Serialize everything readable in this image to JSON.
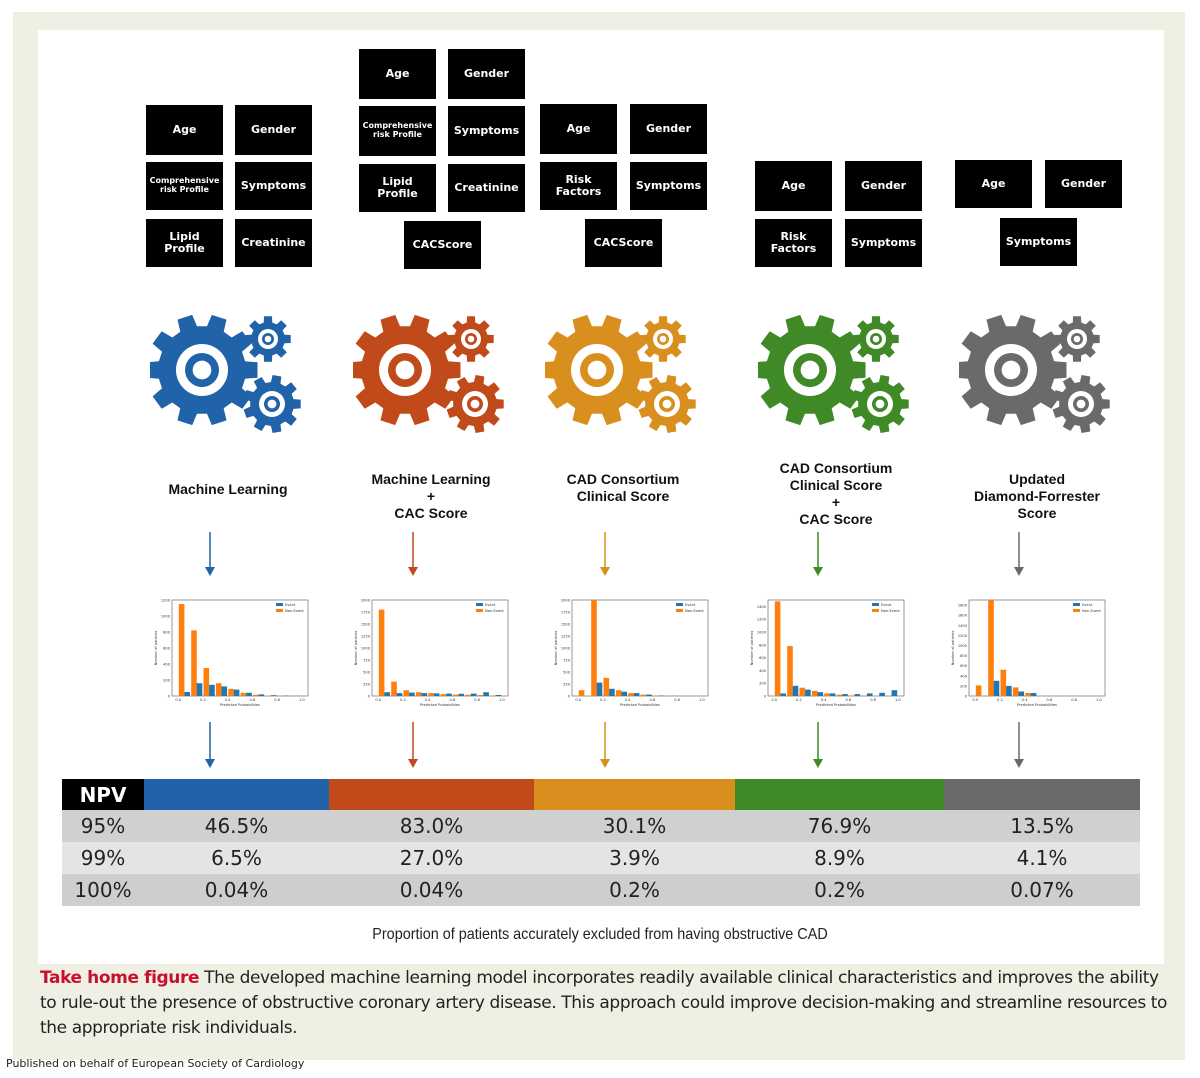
{
  "colors": {
    "ml": "#2063a8",
    "ml_cac": "#c14a1a",
    "cad": "#d98f1e",
    "cad_cac": "#3f8a26",
    "dfs": "#6a6a6a",
    "event": "#1f77b4",
    "nonevent": "#ff7f0e"
  },
  "columns": [
    {
      "id": "ml",
      "title_lines": [
        "Machine Learning"
      ],
      "inputs": [
        "Age",
        "Gender",
        "Comprehensive risk Profile",
        "Symptoms",
        "Lipid Profile",
        "Creatinine"
      ],
      "icon": "gears-icon"
    },
    {
      "id": "ml_cac",
      "title_lines": [
        "Machine Learning",
        "+",
        "CAC Score"
      ],
      "inputs": [
        "Age",
        "Gender",
        "Comprehensive risk Profile",
        "Symptoms",
        "Lipid Profile",
        "Creatinine",
        "CACScore"
      ],
      "icon": "gears-icon"
    },
    {
      "id": "cad",
      "title_lines": [
        "CAD Consortium",
        "Clinical Score"
      ],
      "inputs": [
        "Age",
        "Gender",
        "Risk Factors",
        "Symptoms",
        "CACScore"
      ],
      "icon": "gears-icon"
    },
    {
      "id": "cad_cac",
      "title_lines": [
        "CAD Consortium",
        "Clinical Score",
        "+",
        "CAC Score"
      ],
      "inputs": [
        "Age",
        "Gender",
        "Risk Factors",
        "Symptoms"
      ],
      "icon": "gears-icon"
    },
    {
      "id": "dfs",
      "title_lines": [
        "Updated",
        "Diamond-Forrester",
        "Score"
      ],
      "inputs": [
        "Age",
        "Gender",
        "Symptoms"
      ],
      "icon": "gears-icon"
    }
  ],
  "chart_data": [
    {
      "type": "bar",
      "xlabel": "Predicted Probabilities",
      "ylabel": "Number of patients",
      "ylim": [
        0,
        1200
      ],
      "yticks": [
        0,
        200,
        400,
        600,
        800,
        1000,
        1200
      ],
      "xticks": [
        0.0,
        0.2,
        0.4,
        0.6,
        0.8,
        1.0
      ],
      "x": [
        0.05,
        0.15,
        0.25,
        0.35,
        0.45,
        0.55,
        0.65,
        0.75,
        0.85,
        0.95
      ],
      "series": [
        {
          "name": "Event",
          "values": [
            50,
            160,
            140,
            120,
            80,
            40,
            20,
            10,
            5,
            2
          ]
        },
        {
          "name": "Non-Event",
          "values": [
            1150,
            820,
            350,
            160,
            90,
            40,
            15,
            5,
            2,
            1
          ]
        }
      ],
      "legend": "top-right"
    },
    {
      "type": "bar",
      "xlabel": "Predicted Probabilities",
      "ylabel": "Number of patients",
      "ylim": [
        0,
        2000
      ],
      "yticks": [
        0,
        250,
        500,
        750,
        1000,
        1250,
        1500,
        1750,
        2000
      ],
      "xticks": [
        0.0,
        0.2,
        0.4,
        0.6,
        0.8,
        1.0
      ],
      "x": [
        0.05,
        0.15,
        0.25,
        0.35,
        0.45,
        0.55,
        0.65,
        0.75,
        0.85,
        0.95
      ],
      "series": [
        {
          "name": "Event",
          "values": [
            80,
            60,
            70,
            60,
            55,
            50,
            45,
            50,
            80,
            20
          ]
        },
        {
          "name": "Non-Event",
          "values": [
            1800,
            300,
            120,
            80,
            60,
            40,
            30,
            25,
            20,
            10
          ]
        }
      ],
      "legend": "top-right"
    },
    {
      "type": "bar",
      "xlabel": "Predicted Probabilities",
      "ylabel": "Number of patients",
      "ylim": [
        0,
        2000
      ],
      "yticks": [
        0,
        250,
        500,
        750,
        1000,
        1250,
        1500,
        1750,
        2000
      ],
      "xticks": [
        0.0,
        0.2,
        0.4,
        0.6,
        0.8,
        1.0
      ],
      "x": [
        0.05,
        0.15,
        0.25,
        0.35,
        0.45,
        0.55,
        0.65,
        0.75,
        0.85,
        0.95
      ],
      "series": [
        {
          "name": "Event",
          "values": [
            0,
            280,
            150,
            90,
            60,
            30,
            10,
            5,
            0,
            0
          ]
        },
        {
          "name": "Non-Event",
          "values": [
            120,
            2000,
            380,
            120,
            60,
            30,
            10,
            5,
            0,
            0
          ]
        }
      ],
      "legend": "top-right"
    },
    {
      "type": "bar",
      "xlabel": "Predicted Probabilities",
      "ylabel": "Number of patients",
      "ylim": [
        0,
        1500
      ],
      "yticks": [
        0,
        200,
        400,
        600,
        800,
        1000,
        1200,
        1400
      ],
      "xticks": [
        0.0,
        0.2,
        0.4,
        0.6,
        0.8,
        1.0
      ],
      "x": [
        0.05,
        0.15,
        0.25,
        0.35,
        0.45,
        0.55,
        0.65,
        0.75,
        0.85,
        0.95
      ],
      "series": [
        {
          "name": "Event",
          "values": [
            40,
            160,
            100,
            60,
            40,
            30,
            30,
            40,
            50,
            90
          ]
        },
        {
          "name": "Non-Event",
          "values": [
            1480,
            780,
            130,
            80,
            40,
            20,
            10,
            5,
            0,
            0
          ]
        }
      ],
      "legend": "top-right"
    },
    {
      "type": "bar",
      "xlabel": "Predicted Probabilities",
      "ylabel": "Number of patients",
      "ylim": [
        0,
        1900
      ],
      "yticks": [
        0,
        200,
        400,
        600,
        800,
        1000,
        1200,
        1400,
        1600,
        1800
      ],
      "xticks": [
        0.0,
        0.2,
        0.4,
        0.6,
        0.8,
        1.0
      ],
      "x": [
        0.05,
        0.15,
        0.25,
        0.35,
        0.45,
        0.55,
        0.65,
        0.75,
        0.85,
        0.95
      ],
      "series": [
        {
          "name": "Event",
          "values": [
            0,
            300,
            200,
            90,
            60,
            0,
            0,
            0,
            0,
            0
          ]
        },
        {
          "name": "Non-Event",
          "values": [
            210,
            1900,
            520,
            170,
            60,
            0,
            0,
            0,
            0,
            0
          ]
        }
      ],
      "legend": "top-right"
    }
  ],
  "npv_table": {
    "header": "NPV",
    "rows": [
      {
        "level": "95%",
        "values": [
          "46.5%",
          "83.0%",
          "30.1%",
          "76.9%",
          "13.5%"
        ]
      },
      {
        "level": "99%",
        "values": [
          "6.5%",
          "27.0%",
          "3.9%",
          "8.9%",
          "4.1%"
        ]
      },
      {
        "level": "100%",
        "values": [
          "0.04%",
          "0.04%",
          "0.2%",
          "0.2%",
          "0.07%"
        ]
      }
    ]
  },
  "table_caption": "Proportion of patients accurately excluded from having obstructive CAD",
  "take_home": {
    "label": "Take home figure",
    "text": " The developed machine learning model incorporates readily available clinical characteristics and improves the ability to rule-out the presence of obstructive coronary artery disease. This approach could improve decision-making and streamline resources to the appropriate risk individuals."
  },
  "footer": "Published on behalf of European Society of Cardiology"
}
